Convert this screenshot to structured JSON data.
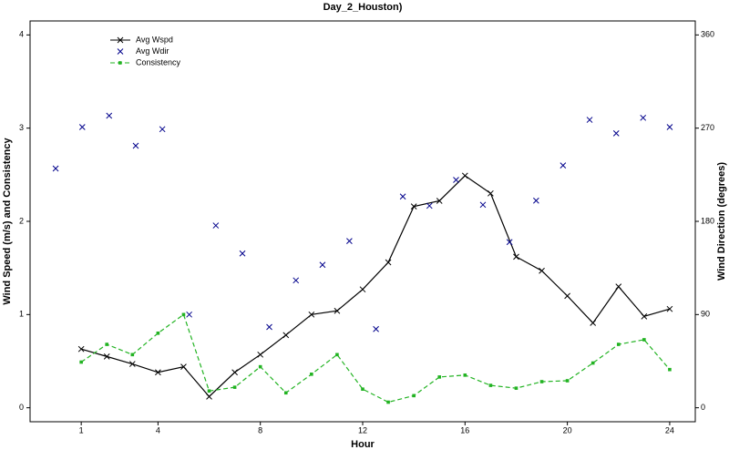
{
  "chart_data": {
    "type": "line",
    "title": "Day_2_Houston)",
    "x_label": "Hour",
    "y_label": "Wind Speed (m/s) and Consistency",
    "y2_label": "Wind Direction (degrees)",
    "xlim": [
      -1,
      25
    ],
    "xticks": [
      1,
      4,
      8,
      12,
      16,
      20,
      24
    ],
    "ylim": [
      -0.15,
      4.15
    ],
    "yticks": [
      0,
      1,
      2,
      3,
      4
    ],
    "y2lim": [
      -13.5,
      373.5
    ],
    "y2ticks": [
      0,
      90,
      180,
      270,
      360
    ],
    "legend": "upper left",
    "series": [
      {
        "name": "Avg Wspd",
        "color": "#000000",
        "style": "solid",
        "marker": "x",
        "x": [
          1,
          2,
          3,
          4,
          5,
          6,
          7,
          8,
          9,
          10,
          11,
          12,
          13,
          14,
          15,
          16,
          17,
          18,
          19,
          20,
          21,
          22,
          23,
          24
        ],
        "values": [
          0.63,
          0.55,
          0.47,
          0.38,
          0.44,
          0.12,
          0.38,
          0.57,
          0.78,
          1.0,
          1.04,
          1.27,
          1.56,
          2.16,
          2.22,
          2.49,
          2.3,
          1.62,
          1.47,
          1.2,
          0.91,
          1.3,
          0.98,
          1.06
        ]
      },
      {
        "name": "Avg Wdir",
        "color": "#00008b",
        "style": "none",
        "marker": "x",
        "axis": "y2",
        "x": [
          0,
          1.04,
          2.09,
          3.13,
          4.17,
          5.22,
          6.26,
          7.3,
          8.35,
          9.39,
          10.43,
          11.48,
          12.52,
          13.57,
          14.61,
          15.65,
          16.7,
          17.74,
          18.78,
          19.83,
          20.87,
          21.91,
          22.96,
          24
        ],
        "values": [
          231,
          271,
          282,
          253,
          269,
          90,
          176,
          149,
          78,
          123,
          138,
          161,
          76,
          204,
          195,
          220,
          196,
          160,
          200,
          234,
          278,
          265,
          280,
          271
        ]
      },
      {
        "name": "Consistency",
        "color": "#22b322",
        "style": "dashed",
        "marker": "square",
        "x": [
          1,
          2,
          3,
          4,
          5,
          6,
          7,
          8,
          9,
          10,
          11,
          12,
          13,
          14,
          15,
          16,
          17,
          18,
          19,
          20,
          21,
          22,
          23,
          24
        ],
        "values": [
          0.49,
          0.68,
          0.57,
          0.8,
          1.0,
          0.18,
          0.22,
          0.44,
          0.16,
          0.36,
          0.57,
          0.2,
          0.06,
          0.13,
          0.33,
          0.35,
          0.24,
          0.21,
          0.28,
          0.29,
          0.48,
          0.68,
          0.73,
          0.41
        ]
      }
    ]
  }
}
